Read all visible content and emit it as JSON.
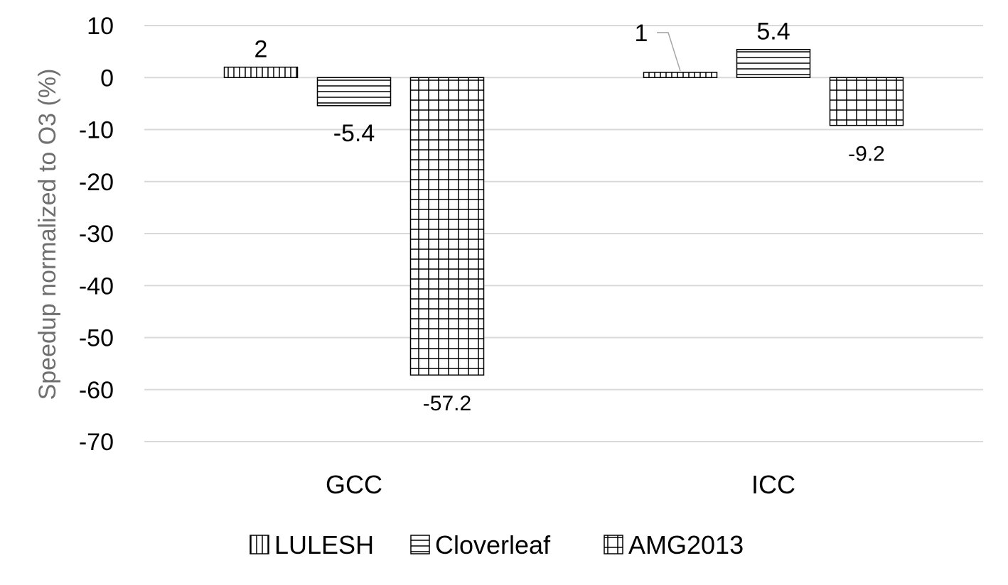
{
  "chart_data": {
    "type": "bar",
    "categories": [
      "GCC",
      "ICC"
    ],
    "series": [
      {
        "name": "LULESH",
        "values": [
          2,
          1
        ],
        "pattern": "vertical"
      },
      {
        "name": "Cloverleaf",
        "values": [
          -5.4,
          5.4
        ],
        "pattern": "horizontal"
      },
      {
        "name": "AMG2013",
        "values": [
          -57.2,
          -9.2
        ],
        "pattern": "grid"
      }
    ],
    "data_labels": [
      [
        "2",
        "1"
      ],
      [
        "-5.4",
        "5.4"
      ],
      [
        "-57.2",
        "-9.2"
      ]
    ],
    "ylabel": "Speedup normalized to O3 (%)",
    "xlabel": "",
    "ylim": [
      -70,
      10
    ],
    "yticks": [
      10,
      0,
      -10,
      -20,
      -30,
      -40,
      -50,
      -60,
      -70
    ],
    "grid": true,
    "legend_position": "bottom",
    "colors": {
      "gridline": "#d9d9d9",
      "bar_stroke": "#000000",
      "bar_fill": "#ffffff",
      "ylabel": "#6f6f6f",
      "leader": "#a6a6a6"
    }
  }
}
